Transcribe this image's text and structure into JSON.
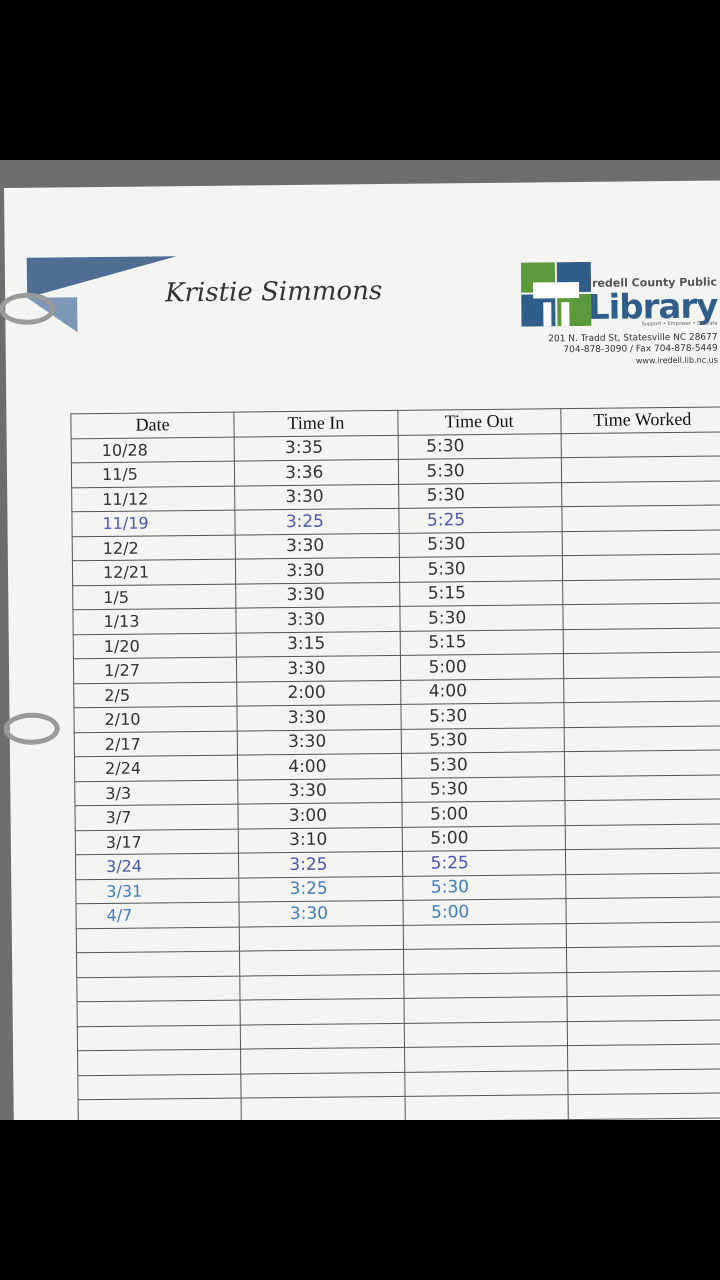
{
  "header": {
    "name": "Kristie Simmons",
    "library": {
      "line1": "Iredell County Public",
      "line2": "Library",
      "tagline": "Support • Empower • Educate",
      "address": "201 N. Tradd St, Statesville NC 28677",
      "phone": "704-878-3090 / Fax 704-878-5449",
      "web": "www.iredell.lib.nc.us"
    }
  },
  "table": {
    "columns": [
      "Date",
      "Time In",
      "Time Out",
      "Time Worked"
    ],
    "rows": [
      [
        "10/28",
        "3:35",
        "5:30"
      ],
      [
        "11/5",
        "3:36",
        "5:30"
      ],
      [
        "11/12",
        "3:30",
        "5:30"
      ],
      [
        "11/19",
        "3:25",
        "5:25"
      ],
      [
        "12/2",
        "3:30",
        "5:30"
      ],
      [
        "12/21",
        "3:30",
        "5:30"
      ],
      [
        "1/5",
        "3:30",
        "5:15"
      ],
      [
        "1/13",
        "3:30",
        "5:30"
      ],
      [
        "1/20",
        "3:15",
        "5:15"
      ],
      [
        "1/27",
        "3:30",
        "5:00"
      ],
      [
        "2/5",
        "2:00",
        "4:00"
      ],
      [
        "2/10",
        "3:30",
        "5:30"
      ],
      [
        "2/17",
        "3:30",
        "5:30"
      ],
      [
        "2/24",
        "4:00",
        "5:30"
      ],
      [
        "3/3",
        "3:30",
        "5:30"
      ],
      [
        "3/7",
        "3:00",
        "5:00"
      ],
      [
        "3/17",
        "3:10",
        "5:00"
      ],
      [
        "3/24",
        "3:25",
        "5:25"
      ],
      [
        "3/31",
        "3:25",
        "5:30"
      ],
      [
        "4/7",
        "3:30",
        "5:00"
      ]
    ]
  }
}
